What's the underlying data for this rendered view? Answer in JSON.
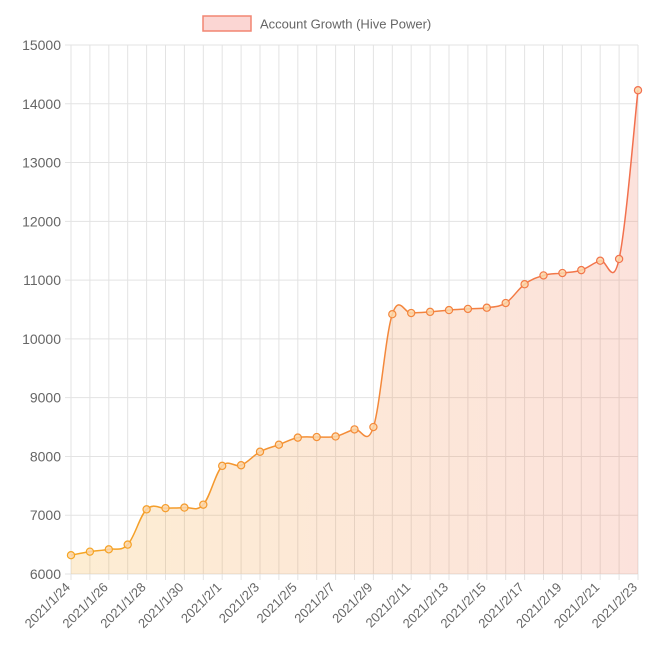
{
  "chart_data": {
    "type": "area",
    "legend": {
      "label": "Account Growth (Hive Power)",
      "position": "top-center"
    },
    "x": [
      "2021/1/24",
      "2021/1/25",
      "2021/1/26",
      "2021/1/27",
      "2021/1/28",
      "2021/1/29",
      "2021/1/30",
      "2021/1/31",
      "2021/2/1",
      "2021/2/2",
      "2021/2/3",
      "2021/2/4",
      "2021/2/5",
      "2021/2/6",
      "2021/2/7",
      "2021/2/8",
      "2021/2/9",
      "2021/2/10",
      "2021/2/11",
      "2021/2/12",
      "2021/2/13",
      "2021/2/14",
      "2021/2/15",
      "2021/2/16",
      "2021/2/17",
      "2021/2/18",
      "2021/2/19",
      "2021/2/20",
      "2021/2/21",
      "2021/2/22",
      "2021/2/23"
    ],
    "x_tick_labels": [
      "2021/1/24",
      "2021/1/26",
      "2021/1/28",
      "2021/1/30",
      "2021/2/1",
      "2021/2/3",
      "2021/2/5",
      "2021/2/7",
      "2021/2/9",
      "2021/2/11",
      "2021/2/13",
      "2021/2/15",
      "2021/2/17",
      "2021/2/19",
      "2021/2/21",
      "2021/2/23"
    ],
    "series": [
      {
        "name": "Account Growth (Hive Power)",
        "values": [
          6320,
          6380,
          6420,
          6500,
          7100,
          7120,
          7130,
          7180,
          7840,
          7850,
          8080,
          8200,
          8320,
          8330,
          8340,
          8460,
          8500,
          10420,
          10440,
          10460,
          10490,
          10510,
          10530,
          10610,
          10930,
          11080,
          11120,
          11170,
          11330,
          11360,
          14230
        ]
      }
    ],
    "ylim": [
      6000,
      15000
    ],
    "y_ticks": [
      6000,
      7000,
      8000,
      9000,
      10000,
      11000,
      12000,
      13000,
      14000,
      15000
    ],
    "grid": true,
    "colors": {
      "line_start": "#f5a623",
      "line_end": "#f2704f",
      "point_fill": "#fbd6a8",
      "legend_fill": "#fbd6d3",
      "legend_stroke": "#f28572",
      "grid": "#e3e3e3",
      "text": "#666666"
    }
  }
}
